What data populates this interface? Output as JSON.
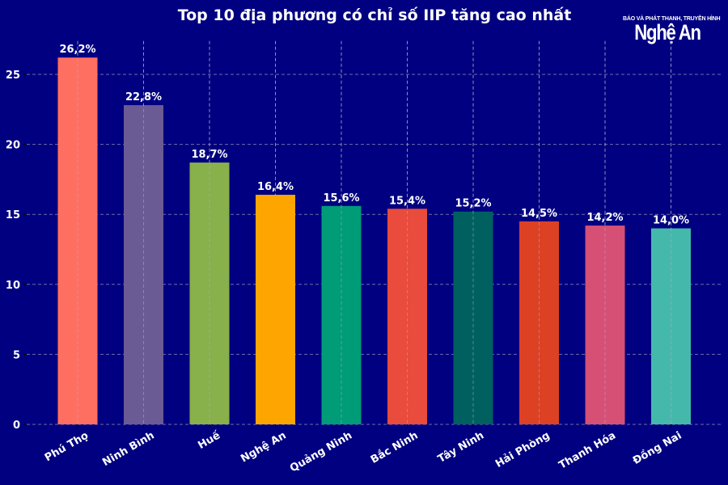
{
  "header": {
    "title": "Top 10 địa phương có chỉ số IIP tăng cao nhất",
    "logo_subtitle": "BÁO VÀ PHÁT THANH, TRUYỀN HÌNH",
    "logo_main": "Nghệ An"
  },
  "colors": {
    "background": "#000080",
    "grid": "#8a8ab8",
    "bars": [
      "#ff6f61",
      "#6b5b95",
      "#88b04b",
      "#ffa500",
      "#009b77",
      "#e94b3c",
      "#006060",
      "#dd4124",
      "#d65076",
      "#45b8ac"
    ]
  },
  "chart_data": {
    "type": "bar",
    "title": "Top 10 địa phương có chỉ số IIP tăng cao nhất",
    "xlabel": "",
    "ylabel": "",
    "categories": [
      "Phú Thọ",
      "Ninh Bình",
      "Huế",
      "Nghệ An",
      "Quảng Ninh",
      "Bắc Ninh",
      "Tây Ninh",
      "Hải Phòng",
      "Thanh Hóa",
      "Đồng Nai"
    ],
    "values": [
      26.2,
      22.8,
      18.7,
      16.4,
      15.6,
      15.4,
      15.2,
      14.5,
      14.2,
      14.0
    ],
    "data_labels": [
      "26,2%",
      "22,8%",
      "18,7%",
      "16,4%",
      "15,6%",
      "15,4%",
      "15,2%",
      "14,5%",
      "14,2%",
      "14,0%"
    ],
    "yticks": [
      0,
      5,
      10,
      15,
      20,
      25
    ],
    "ylim": [
      0,
      27.5
    ],
    "grid": true,
    "legend": null
  }
}
